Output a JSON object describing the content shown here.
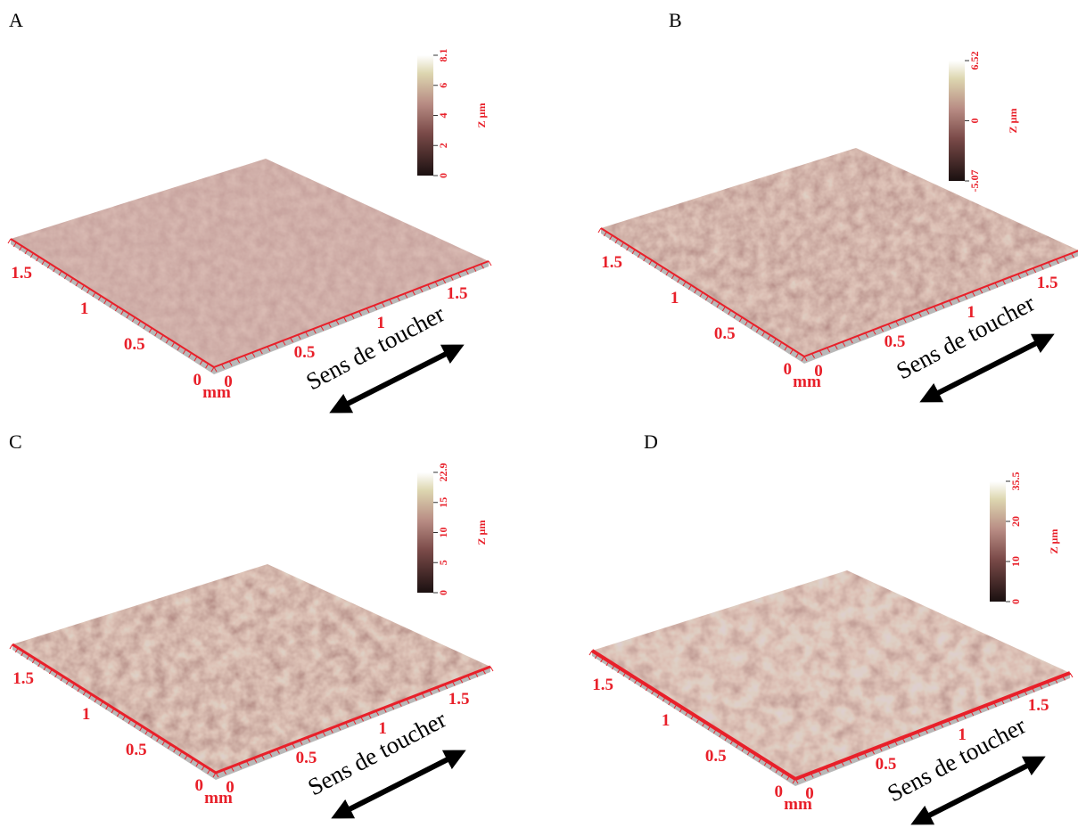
{
  "panels": [
    {
      "label": "A",
      "z_title": "Z µm",
      "z_ticks": [
        "8.1",
        "6",
        "4",
        "2",
        "0"
      ],
      "y_ticks": [
        "0",
        "0.5",
        "1",
        "1.5"
      ],
      "x_ticks": [
        "0",
        "0.5",
        "1",
        "1.5"
      ],
      "unit": "mm",
      "caption": "Sens de toucher"
    },
    {
      "label": "B",
      "z_title": "Z µm",
      "z_ticks": [
        "6.52",
        "0",
        "-5.07"
      ],
      "y_ticks": [
        "0",
        "0.5",
        "1",
        "1.5"
      ],
      "x_ticks": [
        "0",
        "0.5",
        "1",
        "1.5"
      ],
      "unit": "mm",
      "caption": "Sens de toucher"
    },
    {
      "label": "C",
      "z_title": "Z µm",
      "z_ticks": [
        "22.9",
        "15",
        "10",
        "5",
        "0"
      ],
      "y_ticks": [
        "0",
        "0.5",
        "1",
        "1.5"
      ],
      "x_ticks": [
        "0",
        "0.5",
        "1",
        "1.5"
      ],
      "unit": "mm",
      "caption": "Sens de toucher"
    },
    {
      "label": "D",
      "z_title": "Z µm",
      "z_ticks": [
        "35.5",
        "20",
        "10",
        "0"
      ],
      "y_ticks": [
        "0",
        "0.5",
        "1",
        "1.5"
      ],
      "x_ticks": [
        "0",
        "0.5",
        "1",
        "1.5"
      ],
      "unit": "mm",
      "caption": "Sens de toucher"
    }
  ]
}
